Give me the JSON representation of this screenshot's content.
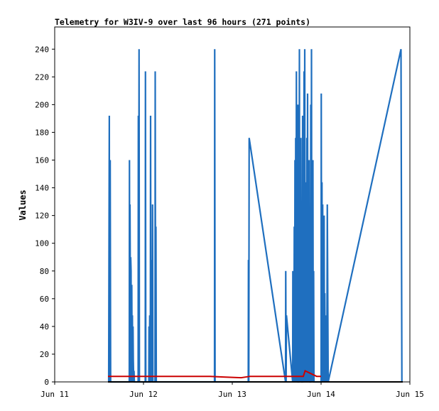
{
  "chart_data": {
    "type": "line",
    "title": "Telemetry for W3IV-9 over last 96 hours (271 points)",
    "xlabel": "",
    "ylabel": "Values",
    "x_ticks": [
      "Jun 11",
      "Jun 12",
      "Jun 13",
      "Jun 14",
      "Jun 15"
    ],
    "xlim": [
      0,
      4
    ],
    "ylim": [
      0,
      256
    ],
    "y_ticks": [
      0,
      20,
      40,
      60,
      80,
      100,
      120,
      140,
      160,
      180,
      200,
      220,
      240
    ],
    "grid": false,
    "series": [
      {
        "color": "#1f6fbf",
        "x": [
          0.608,
          0.615,
          0.617,
          0.62,
          0.622,
          0.625,
          0.63,
          0.84,
          0.842,
          0.845,
          0.848,
          0.85,
          0.853,
          0.856,
          0.86,
          0.862,
          0.865,
          0.868,
          0.872,
          0.875,
          0.878,
          0.882,
          0.885,
          0.89,
          0.893,
          0.897,
          0.94,
          0.942,
          0.946,
          0.95,
          0.954,
          1.02,
          1.022,
          1.026,
          1.03,
          1.06,
          1.062,
          1.066,
          1.07,
          1.074,
          1.077,
          1.08,
          1.083,
          1.086,
          1.09,
          1.094,
          1.098,
          1.102,
          1.106,
          1.13,
          1.132,
          1.136,
          1.14,
          1.144,
          1.148,
          1.152,
          1.156,
          1.16,
          1.8,
          1.802,
          1.806,
          1.81,
          2.18,
          2.182,
          2.186,
          2.19,
          2.6,
          2.602,
          2.606,
          2.61,
          2.68,
          2.682,
          2.686,
          2.69,
          2.694,
          2.698,
          2.702,
          2.706,
          2.71,
          2.714,
          2.718,
          2.722,
          2.726,
          2.73,
          2.734,
          2.738,
          2.742,
          2.746,
          2.75,
          2.752,
          2.756,
          2.76,
          2.764,
          2.768,
          2.772,
          2.776,
          2.78,
          2.784,
          2.788,
          2.792,
          2.796,
          2.8,
          2.805,
          2.808,
          2.812,
          2.816,
          2.82,
          2.824,
          2.828,
          2.832,
          2.836,
          2.84,
          2.844,
          2.848,
          2.852,
          2.856,
          2.86,
          2.864,
          2.868,
          2.872,
          2.876,
          2.88,
          2.884,
          2.888,
          2.892,
          2.896,
          2.9,
          2.904,
          2.908,
          2.912,
          2.916,
          2.92,
          3.0,
          3.002,
          3.006,
          3.01,
          3.014,
          3.018,
          3.022,
          3.026,
          3.03,
          3.034,
          3.038,
          3.042,
          3.046,
          3.05,
          3.054,
          3.058,
          3.062,
          3.066,
          3.07,
          3.08,
          3.9,
          3.91
        ],
        "values": [
          0,
          192,
          0,
          80,
          0,
          160,
          0,
          0,
          160,
          0,
          128,
          96,
          0,
          90,
          80,
          0,
          64,
          70,
          0,
          48,
          0,
          40,
          16,
          0,
          8,
          0,
          0,
          192,
          0,
          240,
          0,
          0,
          224,
          0,
          0,
          0,
          40,
          0,
          48,
          0,
          0,
          192,
          0,
          88,
          0,
          32,
          0,
          128,
          0,
          0,
          224,
          0,
          112,
          0,
          0,
          0,
          0,
          0,
          0,
          240,
          0,
          0,
          0,
          88,
          0,
          176,
          0,
          80,
          0,
          48,
          0,
          80,
          0,
          64,
          0,
          112,
          0,
          160,
          0,
          176,
          0,
          224,
          0,
          120,
          0,
          200,
          0,
          0,
          160,
          0,
          240,
          0,
          144,
          0,
          176,
          0,
          80,
          0,
          0,
          192,
          0,
          128,
          0,
          224,
          0,
          240,
          0,
          120,
          0,
          144,
          0,
          176,
          0,
          208,
          0,
          100,
          0,
          160,
          0,
          48,
          0,
          0,
          200,
          0,
          240,
          0,
          144,
          0,
          160,
          0,
          80,
          0,
          0,
          208,
          0,
          144,
          0,
          128,
          0,
          80,
          0,
          120,
          0,
          64,
          0,
          48,
          0,
          16,
          0,
          32,
          128,
          0,
          240,
          0
        ]
      },
      {
        "color": "#cc0000",
        "x": [
          0.6,
          1.75,
          1.9,
          2.1,
          2.2,
          2.7,
          2.72,
          2.8,
          2.82,
          2.95,
          3.0
        ],
        "values": [
          4,
          4,
          3.5,
          3,
          4,
          4,
          4,
          4,
          8,
          4,
          4
        ]
      },
      {
        "color": "#000000",
        "x": [
          0.6,
          3.92
        ],
        "values": [
          0,
          0
        ]
      }
    ]
  }
}
